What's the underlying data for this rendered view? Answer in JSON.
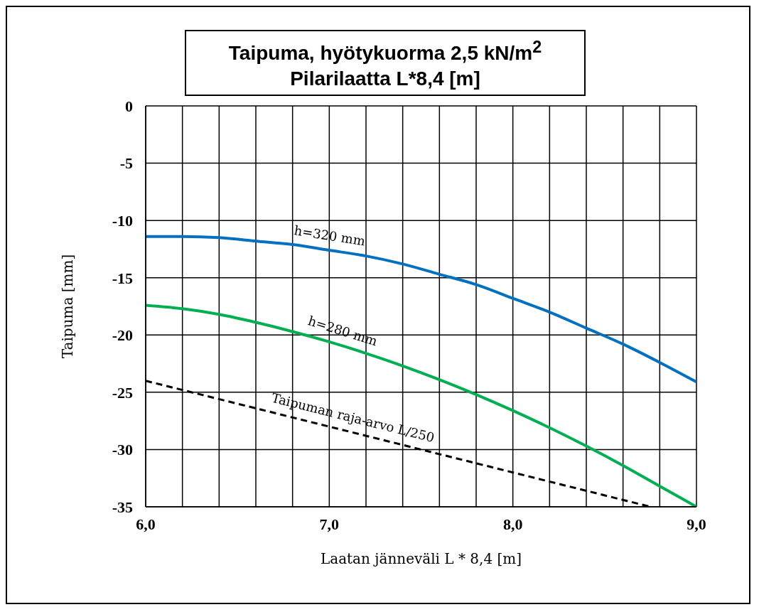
{
  "chart_data": {
    "type": "line",
    "title": "Taipuma, hyötykuorma 2,5 kN/m$^{2}$",
    "subtitle": "Pilarilaatta L*8,4 [m]",
    "xlabel": "Laatan jänneväli L * 8,4 [m]",
    "ylabel": "Taipuma [mm]",
    "xlim": [
      6,
      9
    ],
    "ylim": [
      -35,
      0
    ],
    "xticks": [
      {
        "value": 6,
        "label": "6,0"
      },
      {
        "value": 6.2,
        "label": null
      },
      {
        "value": 6.4,
        "label": null
      },
      {
        "value": 6.6,
        "label": null
      },
      {
        "value": 6.8,
        "label": null
      },
      {
        "value": 7,
        "label": "7,0"
      },
      {
        "value": 7.2,
        "label": null
      },
      {
        "value": 7.4,
        "label": null
      },
      {
        "value": 7.6,
        "label": null
      },
      {
        "value": 7.8,
        "label": null
      },
      {
        "value": 8,
        "label": "8,0"
      },
      {
        "value": 8.2,
        "label": null
      },
      {
        "value": 8.4,
        "label": null
      },
      {
        "value": 8.6,
        "label": null
      },
      {
        "value": 8.8,
        "label": null
      },
      {
        "value": 9,
        "label": "9,0"
      }
    ],
    "yticks": [
      -35,
      -30,
      -25,
      -20,
      -15,
      -10,
      -5,
      0
    ],
    "grid": true,
    "marker": "none",
    "x": [
      6,
      6.2,
      6.4,
      6.6,
      6.8,
      7,
      7.2,
      7.4,
      7.6,
      7.8,
      8,
      8.2,
      8.4,
      8.6,
      8.8,
      9
    ],
    "series": [
      {
        "name": "h=320 mm",
        "color": "#0070c0",
        "line_style": "solid",
        "values": [
          -11.4,
          -11.4,
          -11.5,
          -11.8,
          -12.1,
          -12.6,
          -13.1,
          -13.8,
          -14.7,
          -15.6,
          -16.8,
          -18.0,
          -19.4,
          -20.8,
          -22.4,
          -24.1
        ]
      },
      {
        "name": "h=280 mm",
        "color": "#00b050",
        "line_style": "solid",
        "values": [
          -17.4,
          -17.7,
          -18.2,
          -18.9,
          -19.7,
          -20.6,
          -21.6,
          -22.7,
          -23.9,
          -25.2,
          -26.6,
          -28.1,
          -29.7,
          -31.4,
          -33.2,
          -35.0
        ]
      },
      {
        "name": "Taipuman raja-arvo L/250",
        "color": "#000000",
        "line_style": "dashed",
        "x": [
          6,
          8.75
        ],
        "values": [
          -24,
          -35
        ]
      }
    ]
  }
}
